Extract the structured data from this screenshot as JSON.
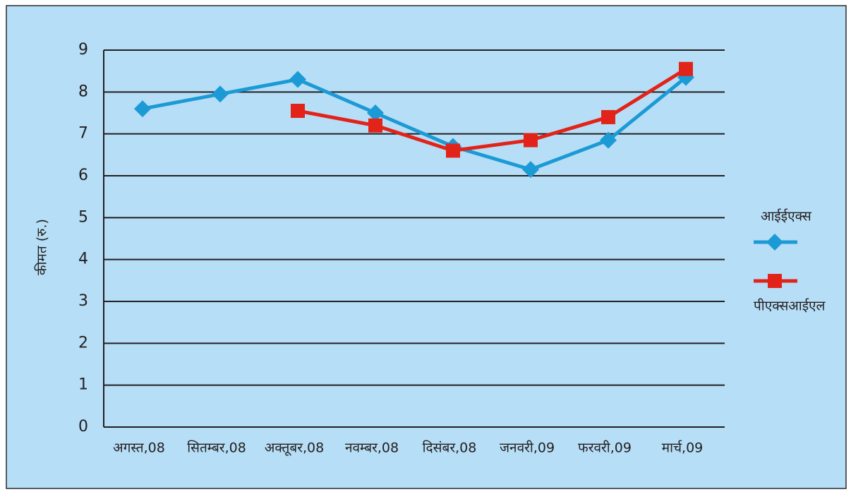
{
  "chart_data": {
    "type": "line",
    "y_label": "कीमत (रु.)",
    "categories": [
      "अगस्त,08",
      "सितम्बर,08",
      "अक्तूबर,08",
      "नवम्बर,08",
      "दिसंबर,08",
      "जनवरी,09",
      "फरवरी,09",
      "मार्च,09"
    ],
    "series": [
      {
        "name": "आईईएक्स",
        "color": "#1b9ad6",
        "marker": "diamond",
        "values": [
          7.6,
          7.95,
          8.3,
          7.5,
          6.7,
          6.15,
          6.85,
          8.35
        ]
      },
      {
        "name": "पीएक्सआईएल",
        "color": "#e2231a",
        "marker": "square",
        "values": [
          null,
          null,
          7.55,
          7.2,
          6.6,
          6.85,
          7.4,
          8.55
        ]
      }
    ],
    "ylim": [
      0,
      9
    ],
    "yticks": [
      0,
      1,
      2,
      3,
      4,
      5,
      6,
      7,
      8,
      9
    ],
    "grid": true,
    "legend": "right"
  }
}
